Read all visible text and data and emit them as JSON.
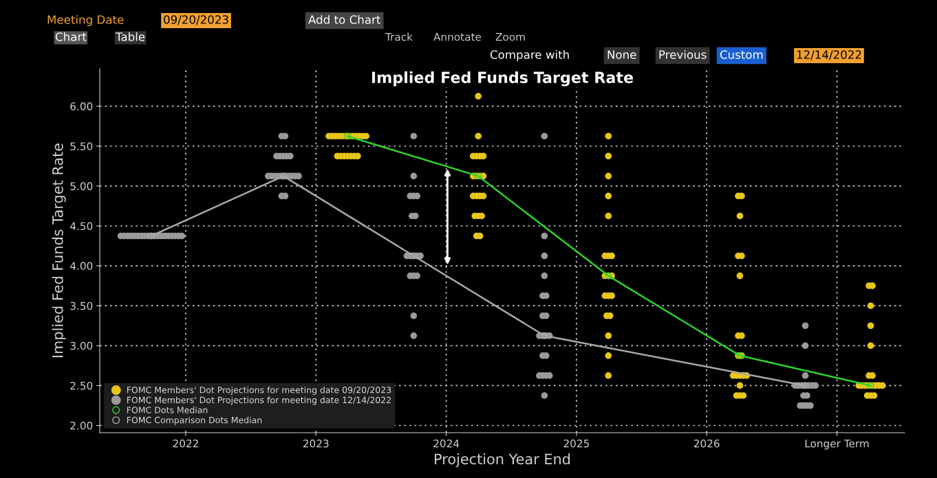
{
  "chart_data": {
    "type": "scatter",
    "title": "Implied Fed Funds Target Rate",
    "xlabel": "Projection Year End",
    "ylabel": "Implied Fed Funds Target Rate",
    "annotations": [
      "Meeting Date",
      "09/20/2023",
      "Add to Chart",
      "Chart",
      "Table",
      "Compare with",
      "None",
      "Previous",
      "Custom",
      "12/14/2022",
      "Track",
      "Annotate",
      "Zoom"
    ],
    "xlim": [
      2021.34,
      2027.52
    ],
    "ylim": [
      1.91,
      6.47
    ],
    "xticks": [
      2022,
      2023,
      2024,
      2025,
      2026,
      {
        "value": 2027,
        "label": "Longer Term"
      }
    ],
    "yticks": [
      {
        "value": 2,
        "label": "2.00"
      },
      {
        "value": 2.5,
        "label": "2.50"
      },
      {
        "value": 3,
        "label": "3.00"
      },
      {
        "value": 3.5,
        "label": "3.50"
      },
      {
        "value": 4,
        "label": "4.00"
      },
      {
        "value": 4.5,
        "label": "4.50"
      },
      {
        "value": 5,
        "label": "5.00"
      },
      {
        "value": 5.5,
        "label": "5.50"
      },
      {
        "value": 6,
        "label": "6.00"
      }
    ],
    "grid": true,
    "legend": "bottom left",
    "marker": "circle",
    "series": [
      {
        "name": "FOMC Members' Dot Projections for meeting date 09/20/2023",
        "color": "#e6c619",
        "x": [
          2023.099,
          2023.125,
          2023.151,
          2023.177,
          2023.203,
          2023.229,
          2023.255,
          2023.281,
          2023.307,
          2023.333,
          2023.359,
          2023.385,
          2023.164,
          2023.19,
          2023.216,
          2023.242,
          2023.268,
          2023.294,
          2023.32,
          2024.246,
          2024.246,
          2024.207,
          2024.233,
          2024.259,
          2024.285,
          2024.207,
          2024.233,
          2024.259,
          2024.285,
          2024.207,
          2024.233,
          2024.259,
          2024.285,
          2024.22,
          2024.246,
          2024.272,
          2024.233,
          2024.259,
          2025.245,
          2025.245,
          2025.245,
          2025.245,
          2025.245,
          2025.219,
          2025.245,
          2025.271,
          2025.219,
          2025.245,
          2025.271,
          2025.219,
          2025.245,
          2025.271,
          2025.232,
          2025.258,
          2025.245,
          2025.245,
          2025.245,
          2026.242,
          2026.268,
          2026.255,
          2026.242,
          2026.268,
          2026.255,
          2026.242,
          2026.268,
          2026.242,
          2026.268,
          2026.203,
          2026.229,
          2026.255,
          2026.281,
          2026.307,
          2026.255,
          2026.229,
          2026.255,
          2026.281,
          2027.246,
          2027.272,
          2027.259,
          2027.259,
          2027.259,
          2027.246,
          2027.272,
          2027.168,
          2027.194,
          2027.22,
          2027.246,
          2027.272,
          2027.298,
          2027.324,
          2027.35,
          2027.233,
          2027.259,
          2027.285
        ],
        "values": [
          5.625,
          5.625,
          5.625,
          5.625,
          5.625,
          5.625,
          5.625,
          5.625,
          5.625,
          5.625,
          5.625,
          5.625,
          5.375,
          5.375,
          5.375,
          5.375,
          5.375,
          5.375,
          5.375,
          6.125,
          5.625,
          5.375,
          5.375,
          5.375,
          5.375,
          5.125,
          5.125,
          5.125,
          5.125,
          4.875,
          4.875,
          4.875,
          4.875,
          4.625,
          4.625,
          4.625,
          4.375,
          4.375,
          5.625,
          5.375,
          5.125,
          4.875,
          4.625,
          4.125,
          4.125,
          4.125,
          3.875,
          3.875,
          3.875,
          3.625,
          3.625,
          3.625,
          3.375,
          3.375,
          3.125,
          2.875,
          2.625,
          4.875,
          4.875,
          4.625,
          4.125,
          4.125,
          3.875,
          3.125,
          3.125,
          2.875,
          2.875,
          2.625,
          2.625,
          2.625,
          2.625,
          2.625,
          2.5,
          2.375,
          2.375,
          2.375,
          3.75,
          3.75,
          3.5,
          3.25,
          3.0,
          2.625,
          2.625,
          2.5,
          2.5,
          2.5,
          2.5,
          2.5,
          2.5,
          2.5,
          2.5,
          2.375,
          2.375,
          2.375
        ]
      },
      {
        "name": "FOMC Members' Dot Projections for meeting date 12/14/2022",
        "color": "#9a9a9a",
        "x": [
          2021.502,
          2021.528,
          2021.554,
          2021.58,
          2021.606,
          2021.632,
          2021.658,
          2021.684,
          2021.71,
          2021.736,
          2021.762,
          2021.788,
          2021.814,
          2021.84,
          2021.866,
          2021.892,
          2021.918,
          2021.944,
          2021.97,
          2022.737,
          2022.763,
          2022.698,
          2022.724,
          2022.75,
          2022.776,
          2022.802,
          2022.633,
          2022.659,
          2022.685,
          2022.711,
          2022.737,
          2022.763,
          2022.789,
          2022.815,
          2022.841,
          2022.867,
          2022.737,
          2022.763,
          2023.75,
          2023.75,
          2023.724,
          2023.75,
          2023.776,
          2023.737,
          2023.763,
          2023.698,
          2023.724,
          2023.75,
          2023.776,
          2023.802,
          2023.724,
          2023.75,
          2023.776,
          2023.75,
          2023.75,
          2024.754,
          2024.754,
          2024.754,
          2024.754,
          2024.741,
          2024.767,
          2024.741,
          2024.767,
          2024.715,
          2024.741,
          2024.767,
          2024.793,
          2024.741,
          2024.767,
          2024.715,
          2024.741,
          2024.767,
          2024.793,
          2024.754,
          2026.757,
          2026.757,
          2026.757,
          2026.679,
          2026.705,
          2026.731,
          2026.757,
          2026.783,
          2026.809,
          2026.835,
          2026.744,
          2026.77,
          2026.718,
          2026.744,
          2026.77,
          2026.796
        ],
        "values": [
          4.375,
          4.375,
          4.375,
          4.375,
          4.375,
          4.375,
          4.375,
          4.375,
          4.375,
          4.375,
          4.375,
          4.375,
          4.375,
          4.375,
          4.375,
          4.375,
          4.375,
          4.375,
          4.375,
          5.625,
          5.625,
          5.375,
          5.375,
          5.375,
          5.375,
          5.375,
          5.125,
          5.125,
          5.125,
          5.125,
          5.125,
          5.125,
          5.125,
          5.125,
          5.125,
          5.125,
          4.875,
          4.875,
          5.625,
          5.125,
          4.875,
          4.875,
          4.875,
          4.625,
          4.625,
          4.125,
          4.125,
          4.125,
          4.125,
          4.125,
          3.875,
          3.875,
          3.875,
          3.375,
          3.125,
          5.625,
          4.375,
          4.125,
          3.875,
          3.625,
          3.625,
          3.375,
          3.375,
          3.125,
          3.125,
          3.125,
          3.125,
          2.875,
          2.875,
          2.625,
          2.625,
          2.625,
          2.625,
          2.375,
          3.25,
          3.0,
          2.625,
          2.5,
          2.5,
          2.5,
          2.5,
          2.5,
          2.5,
          2.5,
          2.375,
          2.375,
          2.25,
          2.25,
          2.25,
          2.25
        ]
      },
      {
        "name": "FOMC Dots Median",
        "color": "#2ed12e",
        "type": "line",
        "x": [
          2023.242,
          2024.246,
          2025.245,
          2026.255,
          2027.259
        ],
        "values": [
          5.625,
          5.125,
          3.875,
          2.875,
          2.5
        ]
      },
      {
        "name": "FOMC Comparison Dots Median",
        "color": "#a8a8a8",
        "type": "line",
        "x": [
          2021.736,
          2022.75,
          2023.75,
          2024.754,
          2026.757
        ],
        "values": [
          4.375,
          5.125,
          4.125,
          3.125,
          2.5
        ]
      }
    ]
  }
}
